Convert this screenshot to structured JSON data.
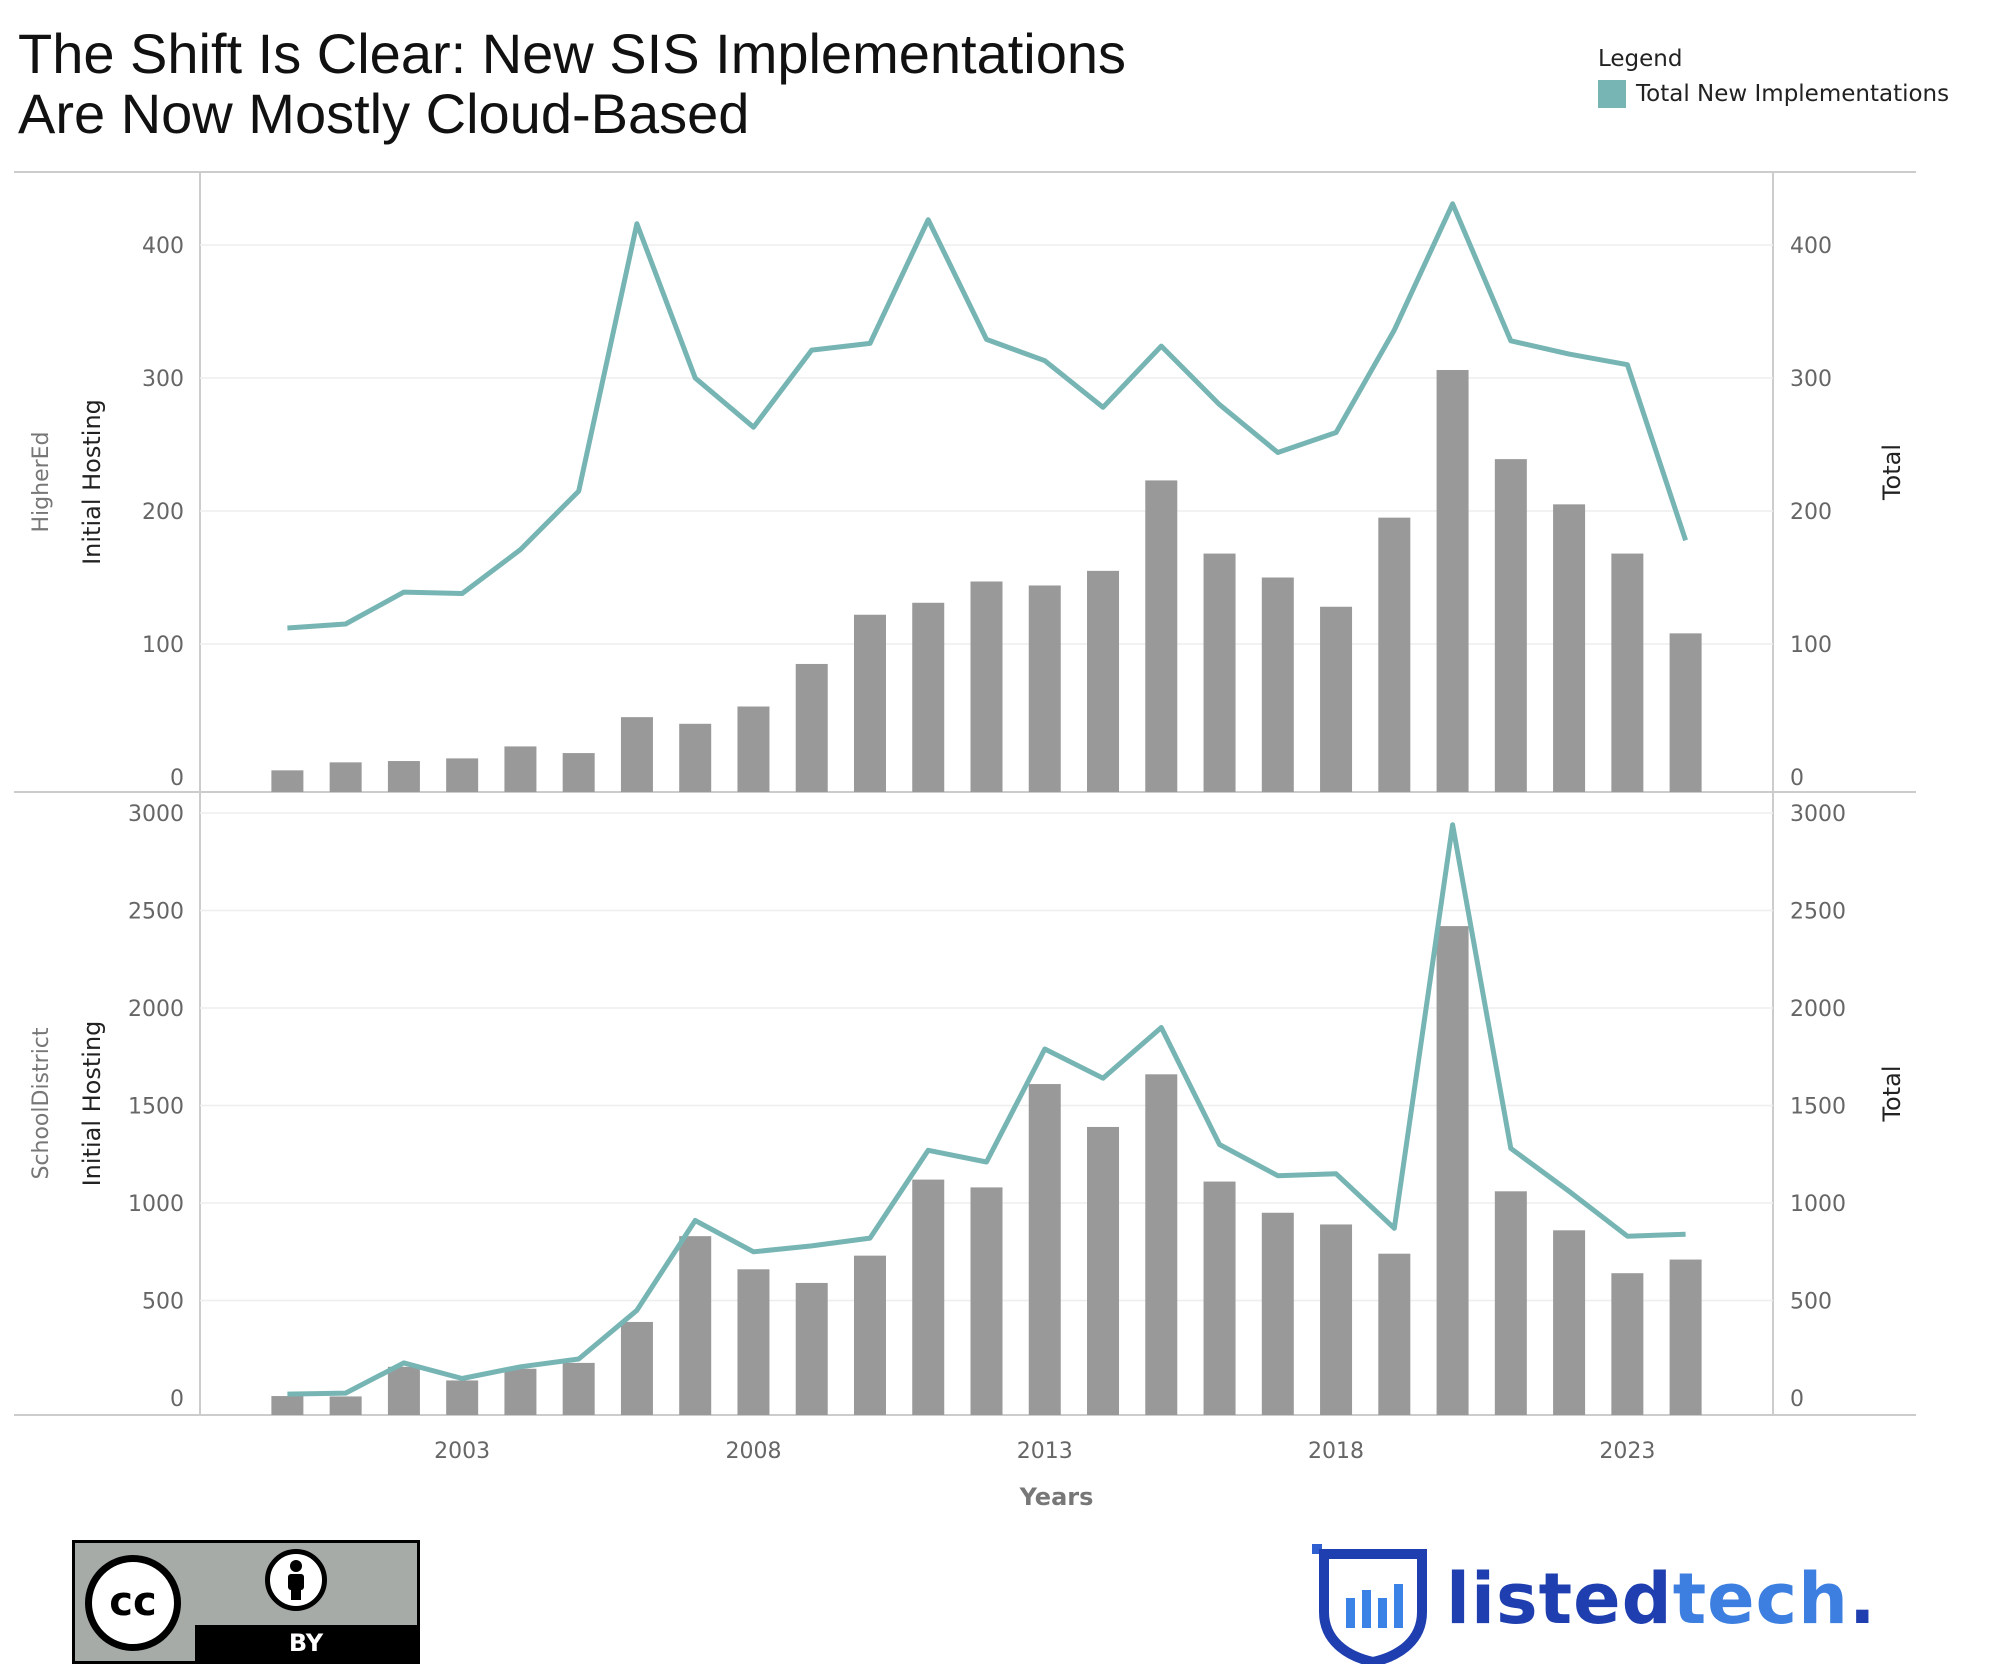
{
  "title_line1": "The Shift Is Clear: New SIS Implementations",
  "title_line2": "Are Now Mostly Cloud-Based",
  "legend": {
    "title": "Legend",
    "items": [
      {
        "label": "Total New Implementations",
        "color": "#76b5b3"
      }
    ]
  },
  "colors": {
    "bar": "#999999",
    "line": "#76b5b3",
    "grid": "#eeeeee",
    "axis": "#cccccc"
  },
  "cc_badge": {
    "icon": "cc-icon",
    "by_icon": "person-icon",
    "by_label": "BY"
  },
  "brand": {
    "logo_icon": "shield-bars-icon",
    "name_part1": "listed",
    "name_part2": "tech",
    "name_part3": "."
  },
  "chart_data": {
    "type": "bar",
    "xlabel": "Years",
    "x": [
      2000,
      2001,
      2002,
      2003,
      2004,
      2005,
      2006,
      2007,
      2008,
      2009,
      2010,
      2011,
      2012,
      2013,
      2014,
      2015,
      2016,
      2017,
      2018,
      2019,
      2020,
      2021,
      2022,
      2023,
      2024
    ],
    "x_ticks": [
      2003,
      2008,
      2013,
      2018,
      2023
    ],
    "facets": [
      {
        "facet_label": "HigherEd",
        "ylabel_left": "Initial Hosting",
        "ylabel_right": "Total",
        "ylim": [
          0,
          450
        ],
        "y_ticks": [
          0,
          100,
          200,
          300,
          400
        ],
        "bars": [
          5,
          11,
          12,
          14,
          23,
          18,
          45,
          40,
          53,
          85,
          122,
          131,
          147,
          144,
          155,
          223,
          168,
          150,
          128,
          195,
          306,
          239,
          205,
          168,
          108
        ],
        "line": [
          112,
          115,
          139,
          138,
          171,
          215,
          416,
          300,
          263,
          321,
          326,
          419,
          329,
          313,
          278,
          324,
          280,
          244,
          259,
          336,
          431,
          328,
          318,
          310,
          178
        ]
      },
      {
        "facet_label": "SchoolDistrict",
        "ylabel_left": "Initial Hosting",
        "ylabel_right": "Total",
        "ylim": [
          -80,
          3100
        ],
        "y_ticks": [
          0,
          500,
          1000,
          1500,
          2000,
          2500,
          3000
        ],
        "bars": [
          10,
          8,
          160,
          90,
          150,
          180,
          390,
          830,
          660,
          590,
          730,
          1120,
          1080,
          1610,
          1390,
          1660,
          1110,
          950,
          890,
          740,
          2420,
          1060,
          860,
          640,
          710
        ],
        "line": [
          20,
          25,
          180,
          100,
          160,
          200,
          450,
          910,
          750,
          780,
          820,
          1270,
          1210,
          1790,
          1640,
          1900,
          1300,
          1140,
          1150,
          870,
          2940,
          1280,
          1060,
          830,
          840
        ]
      }
    ]
  }
}
